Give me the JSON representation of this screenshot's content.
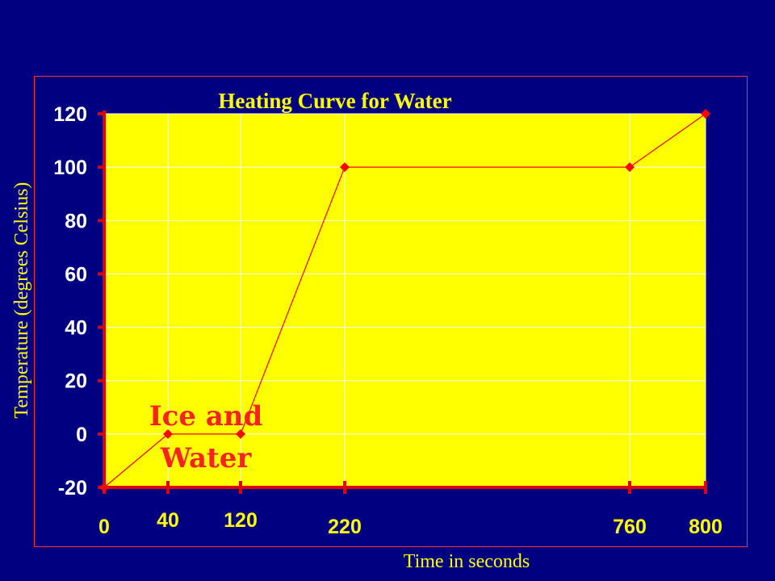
{
  "chart_data": {
    "type": "line",
    "title": "Heating Curve for Water",
    "xlabel": "Time in seconds",
    "ylabel": "Temperature (degrees Celsius)",
    "x_categories": [
      "0",
      "40",
      "120",
      "220",
      "760",
      "800"
    ],
    "series": [
      {
        "values": [
          -20,
          0,
          0,
          100,
          100,
          120
        ]
      }
    ],
    "y_ticks": [
      "-20",
      "0",
      "20",
      "40",
      "60",
      "80",
      "100",
      "120"
    ],
    "ylim": [
      -20,
      120
    ],
    "grid": true,
    "annotation": {
      "line1": "Ice and",
      "line2": "Water"
    },
    "colors": {
      "background": "#000080",
      "plot_area": "#ffff00",
      "line": "#ff0000",
      "gridlines": "#ffffff",
      "axis": "#e00000"
    }
  }
}
